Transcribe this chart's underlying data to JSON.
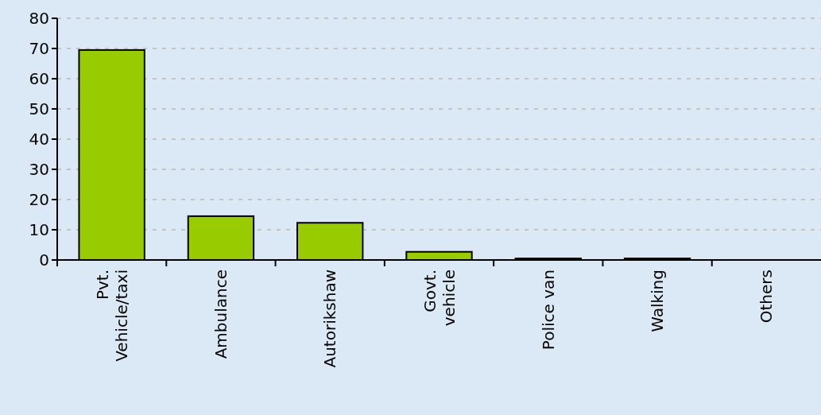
{
  "chart_data": {
    "type": "bar",
    "categories": [
      "Pvt.\nVehicle/taxi",
      "Ambulance",
      "Autorikshaw",
      "Govt.\nvehicle",
      "Police van",
      "Walking",
      "Others"
    ],
    "values": [
      69.5,
      14.5,
      12.3,
      2.7,
      0.5,
      0.5,
      0
    ],
    "color": "#99cc00",
    "ylim": [
      0,
      80
    ],
    "yticks": [
      0,
      10,
      20,
      30,
      40,
      50,
      60,
      70,
      80
    ],
    "grid": "y"
  }
}
